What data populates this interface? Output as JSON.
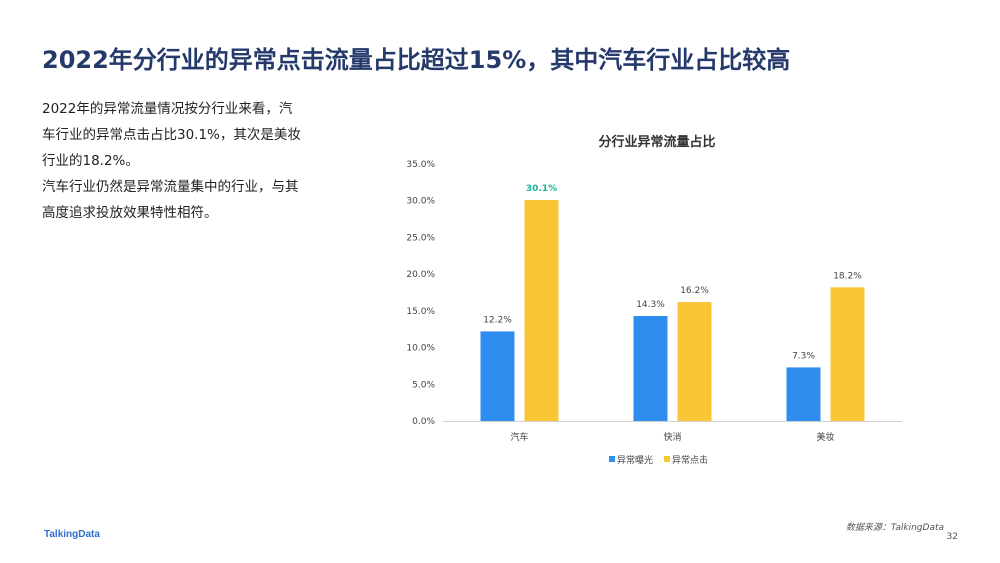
{
  "page": {
    "title": "2022年分行业的异常点击流量占比超过15%，其中汽车行业占比较高",
    "paragraph1": "2022年的异常流量情况按分行业来看，汽车行业的异常点击占比30.1%，其次是美妆行业的18.2%。",
    "paragraph2": "汽车行业仍然是异常流量集中的行业，与其高度追求投放效果特性相符。",
    "logo": "TalkingData",
    "source": "数据来源：TalkingData",
    "page_number": "32"
  },
  "chart_data": {
    "type": "bar",
    "title": "分行业异常流量占比",
    "categories": [
      "汽车",
      "快消",
      "美妆"
    ],
    "series": [
      {
        "name": "异常曝光",
        "values": [
          12.2,
          14.3,
          7.3
        ],
        "labels": [
          "12.2%",
          "14.3%",
          "7.3%"
        ],
        "color": "#2f8def"
      },
      {
        "name": "异常点击",
        "values": [
          30.1,
          16.2,
          18.2
        ],
        "labels": [
          "30.1%",
          "16.2%",
          "18.2%"
        ],
        "color": "#f8c634"
      }
    ],
    "highlight_label_color": "#1ab69b",
    "ylim": [
      0,
      35
    ],
    "yticks": [
      "0.0%",
      "5.0%",
      "10.0%",
      "15.0%",
      "20.0%",
      "25.0%",
      "30.0%",
      "35.0%"
    ],
    "legend_position": "bottom",
    "grid": false
  }
}
